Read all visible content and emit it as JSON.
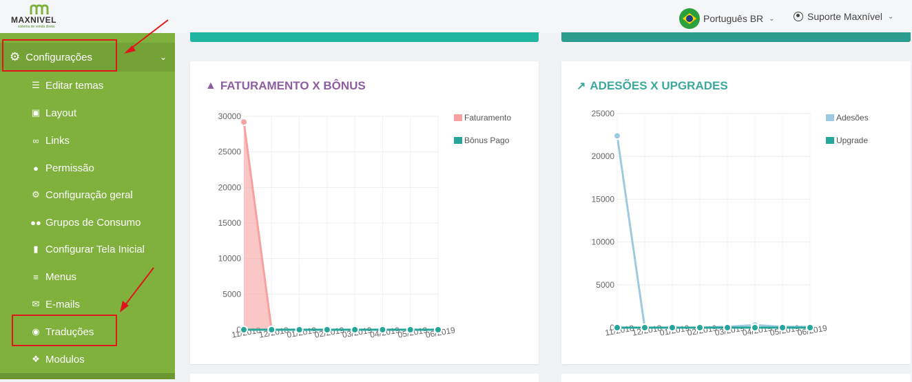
{
  "brand": {
    "name": "MAXNIVEL",
    "tagline": "sistema de venda direta"
  },
  "header": {
    "language": "Português BR",
    "user": "Suporte Maxnível"
  },
  "sidebar": {
    "section": "Configurações",
    "items": [
      {
        "label": "Editar temas",
        "icon": "list-icon"
      },
      {
        "label": "Layout",
        "icon": "image-icon"
      },
      {
        "label": "Links",
        "icon": "link-icon"
      },
      {
        "label": "Permissão",
        "icon": "user-icon"
      },
      {
        "label": "Configuração geral",
        "icon": "gear-icon"
      },
      {
        "label": "Grupos de Consumo",
        "icon": "users-icon"
      },
      {
        "label": "Configurar Tela Inicial",
        "icon": "file-icon"
      },
      {
        "label": "Menus",
        "icon": "bars-icon"
      },
      {
        "label": "E-mails",
        "icon": "envelope-icon"
      },
      {
        "label": "Traduções",
        "icon": "globe-icon"
      },
      {
        "label": "Modulos",
        "icon": "cubes-icon"
      }
    ]
  },
  "colors": {
    "sidebar": "#7fb13c",
    "teal": "#26a69a",
    "purple": "#8e5ea2",
    "faturamento": "#f7a1a1",
    "bonus": "#26a69a",
    "adesoes": "#9ecae1",
    "upgrade": "#26a69a"
  },
  "chart_data": [
    {
      "type": "area",
      "title": "FATURAMENTO X BÔNUS",
      "categories": [
        "11/2018",
        "12/2018",
        "01/2019",
        "02/2019",
        "03/2019",
        "04/2019",
        "05/2019",
        "06/2019"
      ],
      "ylim": [
        0,
        30000
      ],
      "yticks": [
        "30000",
        "25000",
        "20000",
        "15000",
        "10000",
        "5000",
        "0"
      ],
      "legend": "right",
      "series": [
        {
          "name": "Faturamento",
          "values": [
            29200,
            0,
            0,
            0,
            0,
            0,
            0,
            0
          ]
        },
        {
          "name": "Bônus Pago",
          "values": [
            0,
            0,
            0,
            0,
            0,
            0,
            0,
            0
          ]
        }
      ]
    },
    {
      "type": "line",
      "title": "ADESÕES X UPGRADES",
      "categories": [
        "11/2018",
        "12/2018",
        "01/2019",
        "02/2019",
        "03/2019",
        "04/2019",
        "05/2019",
        "06/2019"
      ],
      "ylim": [
        0,
        25000
      ],
      "yticks": [
        "25000",
        "20000",
        "15000",
        "10000",
        "5000",
        "0"
      ],
      "legend": "right",
      "series": [
        {
          "name": "Adesões",
          "values": [
            22400,
            0,
            0,
            0,
            100,
            300,
            100,
            100
          ]
        },
        {
          "name": "Upgrade",
          "values": [
            0,
            0,
            0,
            0,
            0,
            0,
            0,
            0
          ]
        }
      ]
    }
  ]
}
